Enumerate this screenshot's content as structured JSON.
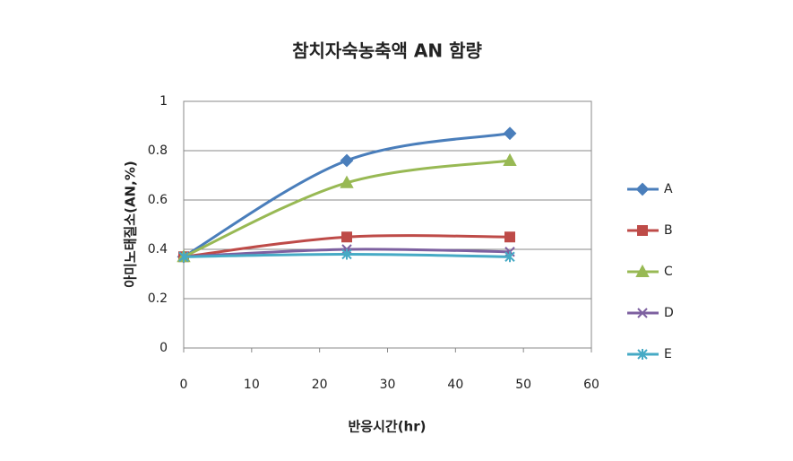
{
  "chart_data": {
    "type": "line",
    "title": "참치자숙농축액 AN 함량",
    "x_label": "반응시간(hr)",
    "y_label": "아미노태질소(AN,%)",
    "x": [
      0,
      24,
      48
    ],
    "series": [
      {
        "name": "A",
        "color": "#4a7ebb",
        "marker": "diamond",
        "values": [
          0.37,
          0.76,
          0.87
        ]
      },
      {
        "name": "B",
        "color": "#be4b48",
        "marker": "square",
        "values": [
          0.37,
          0.45,
          0.45
        ]
      },
      {
        "name": "C",
        "color": "#98b954",
        "marker": "triangle",
        "values": [
          0.37,
          0.67,
          0.76
        ]
      },
      {
        "name": "D",
        "color": "#7d60a0",
        "marker": "x",
        "values": [
          0.37,
          0.4,
          0.39
        ]
      },
      {
        "name": "E",
        "color": "#46aac5",
        "marker": "asterisk",
        "values": [
          0.37,
          0.38,
          0.37
        ]
      }
    ],
    "xlim": [
      0,
      60
    ],
    "xticks": [
      0,
      10,
      20,
      30,
      40,
      50,
      60
    ],
    "ylim": [
      0,
      1
    ],
    "yticks": [
      0,
      0.2,
      0.4,
      0.6,
      0.8,
      1
    ],
    "grid": true,
    "legend": "right"
  }
}
